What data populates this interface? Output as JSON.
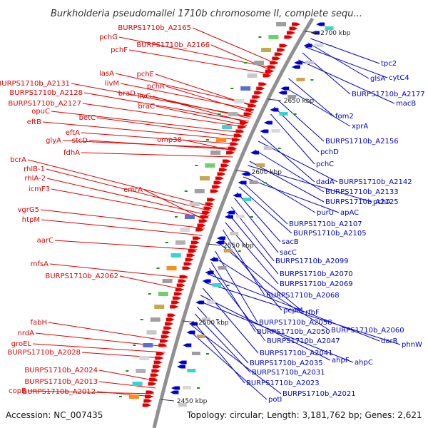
{
  "title": "Burkholderia pseudomallei 1710b chromosome II, complete sequ...",
  "footer": {
    "accession": "Accession: NC_007435",
    "summary": "Topology: circular; Length: 3,181,762 bp; Genes: 2,621"
  },
  "ticks": [
    "2700 kbp",
    "2650 kbp",
    "2600 kbp",
    "2550 kbp",
    "2500 kbp",
    "2450 kbp"
  ],
  "colors": {
    "forward": "#e00000",
    "reverse": "#0000cc",
    "backbone": "#909090"
  },
  "forward_genes": [
    "BURPS1710b_A2165",
    "pchG",
    "BURPS1710b_A2166",
    "pchF",
    "lasA",
    "pchE",
    "livM",
    "pchR",
    "braD",
    "livG",
    "braC",
    "BURPS1710b_A2131",
    "BURPS1710b_A2128",
    "BURPS1710b_A2127",
    "opuC",
    "betC",
    "eftB",
    "eftA",
    "glyA",
    "stcD",
    "omp38",
    "fdhA",
    "bcrA",
    "rhlB-1",
    "rhlA-2",
    "icmF3",
    "emrA",
    "vgrG5",
    "htpM",
    "aarC",
    "mfsA",
    "BURPS1710b_A2062",
    "fabH",
    "nrdA",
    "groEL",
    "BURPS1710b_A2028",
    "BURPS1710b_A2024",
    "BURPS1710b_A2013",
    "copB",
    "BURPS1710b_A2012"
  ],
  "reverse_genes": [
    "tpc2",
    "glsA",
    "cytC4",
    "BURPS1710b_A2177",
    "macB",
    "fom2",
    "xprA",
    "BURPS1710b_A2156",
    "pchD",
    "pchC",
    "dadA",
    "BURPS1710b_A2142",
    "BURPS1710b_A2133",
    "BURPS1710b_A2125",
    "pchA",
    "purU",
    "apAC",
    "BURPS1710b_A2107",
    "BURPS1710b_A2105",
    "sacB",
    "sacC",
    "BURPS1710b_A2099",
    "BURPS1710b_A2070",
    "BURPS1710b_A2069",
    "BURPS1710b_A2068",
    "pepM",
    "rfbF",
    "BURPS1710b_A2058",
    "BURPS1710b_A2060",
    "BURPS1710b_A2050",
    "BURPS1710b_A2047",
    "darR",
    "phnW",
    "BURPS1710b_A2041",
    "ahpF",
    "ahpC",
    "BURPS1710b_A2035",
    "BURPS1710b_A2031",
    "BURPS1710b_A2023",
    "BURPS1710b_A2021",
    "potI"
  ]
}
